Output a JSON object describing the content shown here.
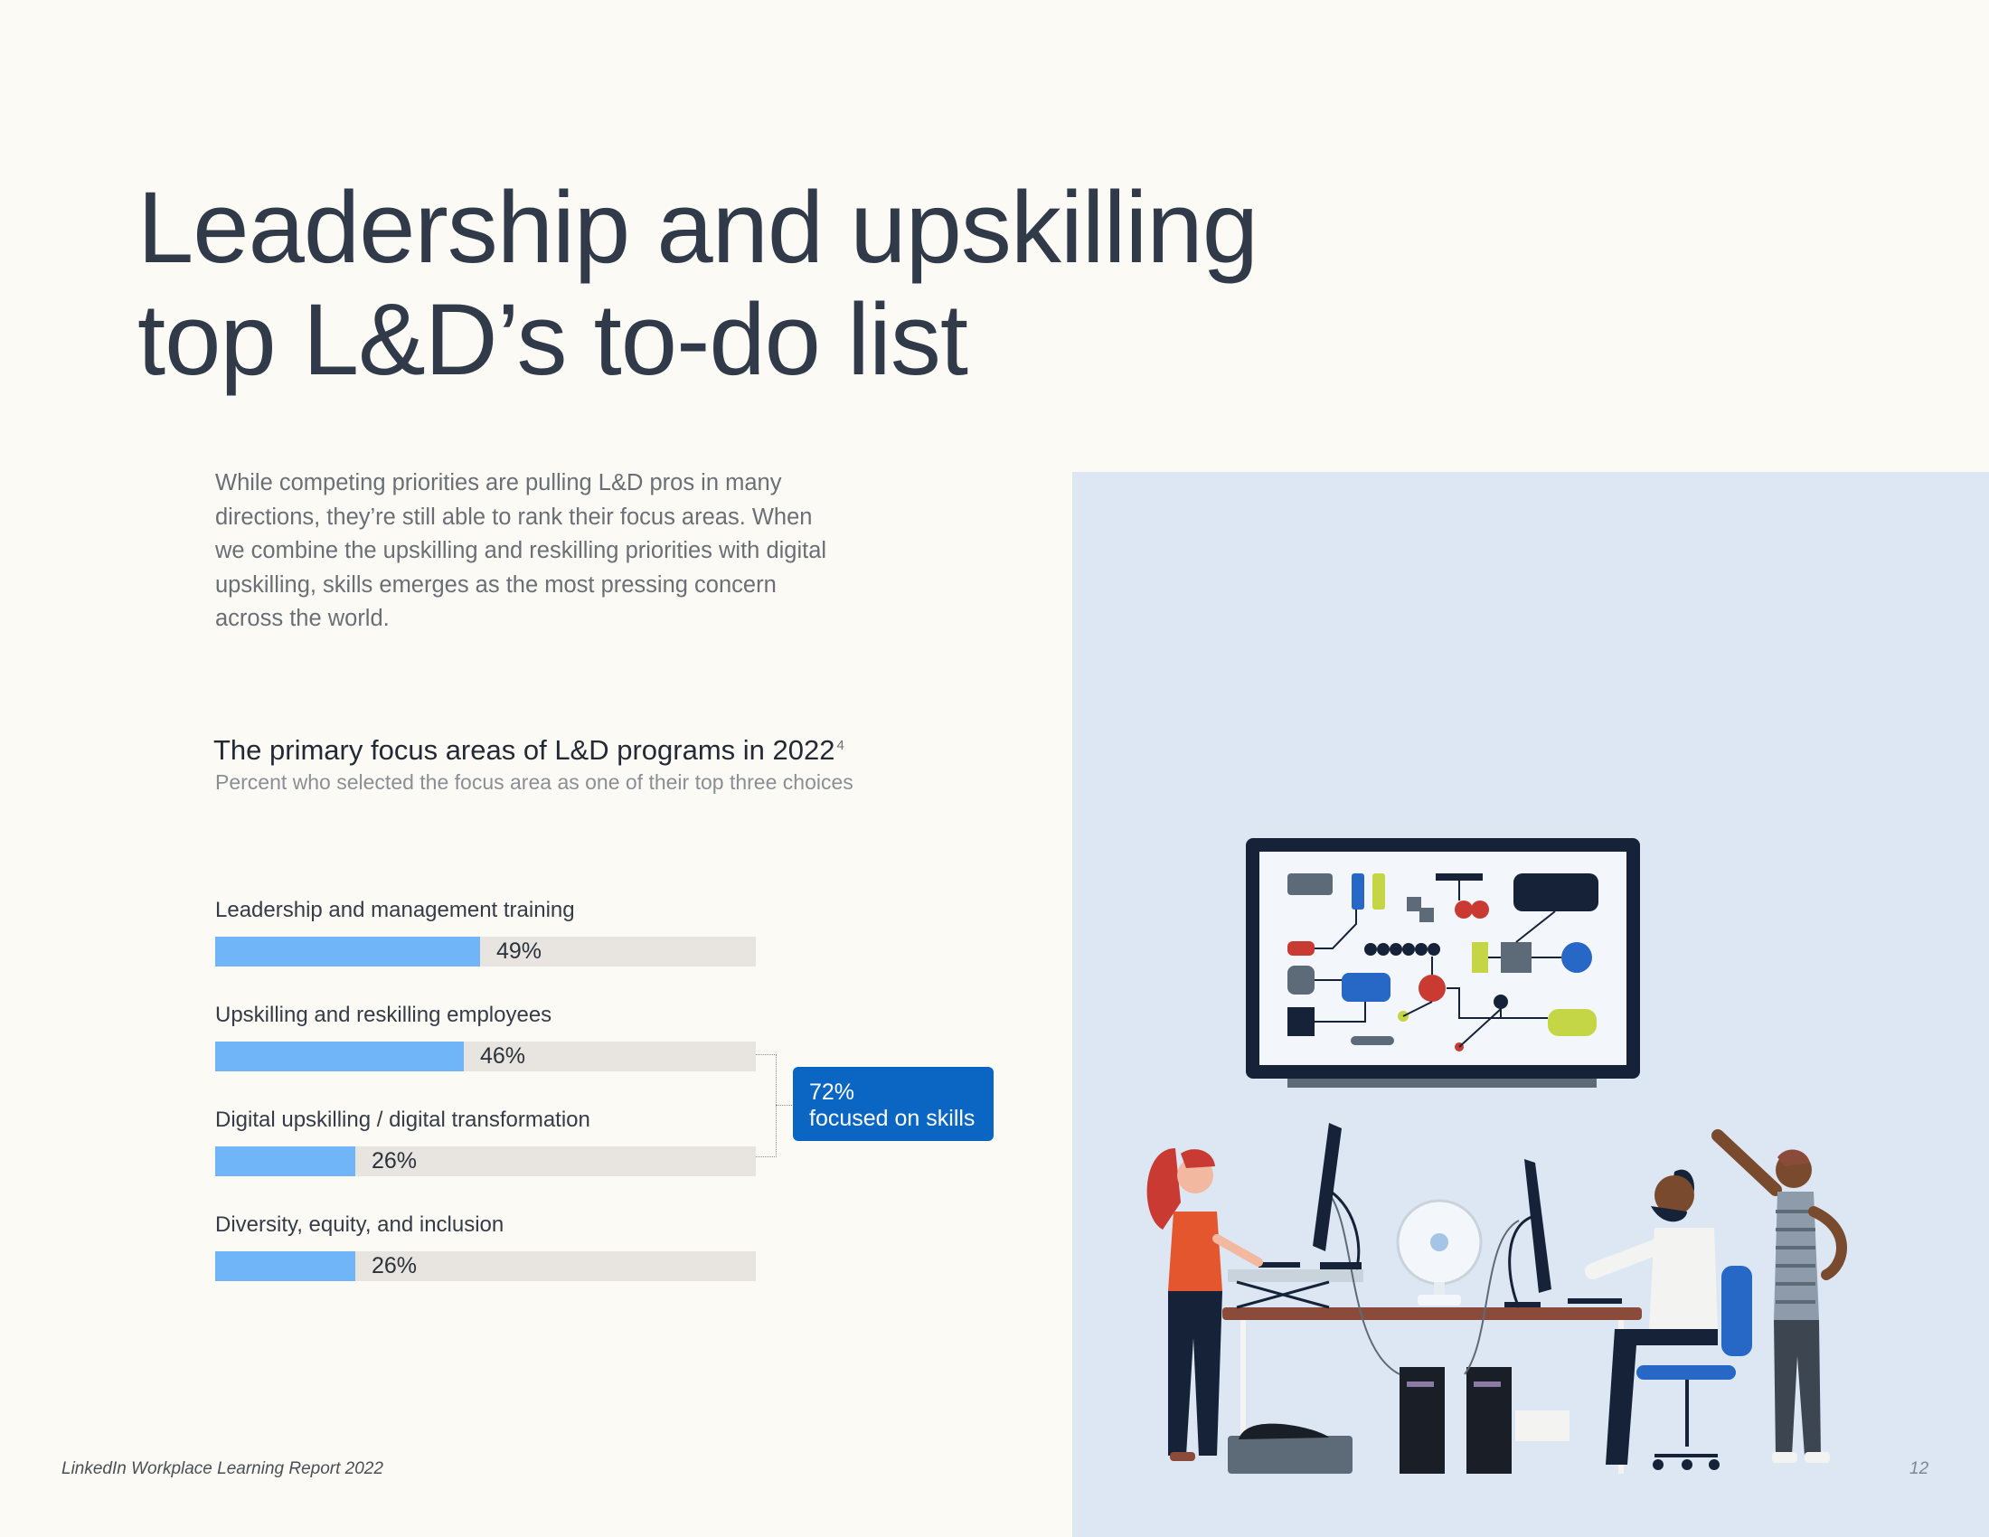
{
  "page": {
    "title_line1": "Leadership and upskilling",
    "title_line2": "top L&D’s to-do list",
    "intro": "While competing priorities are pulling L&D pros in many directions, they’re still able to rank their focus areas. When we combine the upskilling and reskilling priorities with digital upskilling, skills emerges as the most pressing concern across the world.",
    "footer": "LinkedIn Workplace Learning Report 2022",
    "page_number": "12"
  },
  "chart_data": {
    "type": "bar",
    "orientation": "horizontal",
    "title": "The primary focus areas of L&D programs in 2022",
    "title_footnote": "4",
    "subtitle": "Percent who selected the focus area as one of their top three choices",
    "categories": [
      "Leadership and management training",
      "Upskilling and reskilling employees",
      "Digital upskilling / digital transformation",
      "Diversity, equity, and inclusion"
    ],
    "values": [
      49,
      46,
      26,
      26
    ],
    "value_labels": [
      "49%",
      "46%",
      "26%",
      "26%"
    ],
    "xlim": [
      0,
      100
    ],
    "grid": false,
    "bar_color": "#6fb5f7",
    "track_color": "#e8e5e1",
    "annotation": {
      "line1": "72%",
      "line2": "focused on skills",
      "applies_to": [
        "Upskilling and reskilling employees",
        "Digital upskilling / digital transformation"
      ],
      "color": "#0a66c2"
    }
  },
  "illustration": {
    "description_icon": "office-team-illustration",
    "panel_color": "#dde7f3"
  }
}
